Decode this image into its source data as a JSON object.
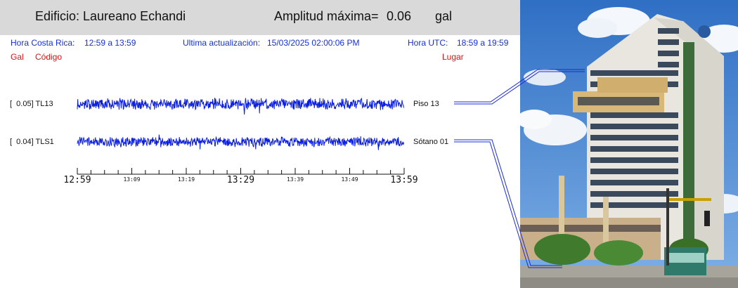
{
  "header": {
    "building": "Edificio: Laureano Echandi",
    "amplitude_label": "Amplitud máxima=",
    "amplitude_value": "0.06",
    "amplitude_unit": "gal"
  },
  "info": {
    "cr_label": "Hora Costa Rica:",
    "cr_range": "12:59 a 13:59",
    "update_label": "Ultima actualización:",
    "update_value": "15/03/2025 02:00:06 PM",
    "utc_label": "Hora UTC:",
    "utc_range": "18:59 a 19:59"
  },
  "columns": {
    "gal": "Gal",
    "code": "Código",
    "place": "Lugar"
  },
  "channels": [
    {
      "label": "[  0.05] TL13",
      "place": "Piso 13",
      "color": "#0a1ee6"
    },
    {
      "label": "[  0.04] TLS1",
      "place": "Sótano 01",
      "color": "#0a1ee6"
    }
  ],
  "time_axis": {
    "labels": [
      "12:59",
      "13:09",
      "13:19",
      "13:29",
      "13:39",
      "13:49",
      "13:59"
    ]
  },
  "colors": {
    "trace": "#0a1ee6",
    "info_text": "#1530d6",
    "column_text": "#e01010",
    "header_bg": "#d9d9d9"
  }
}
